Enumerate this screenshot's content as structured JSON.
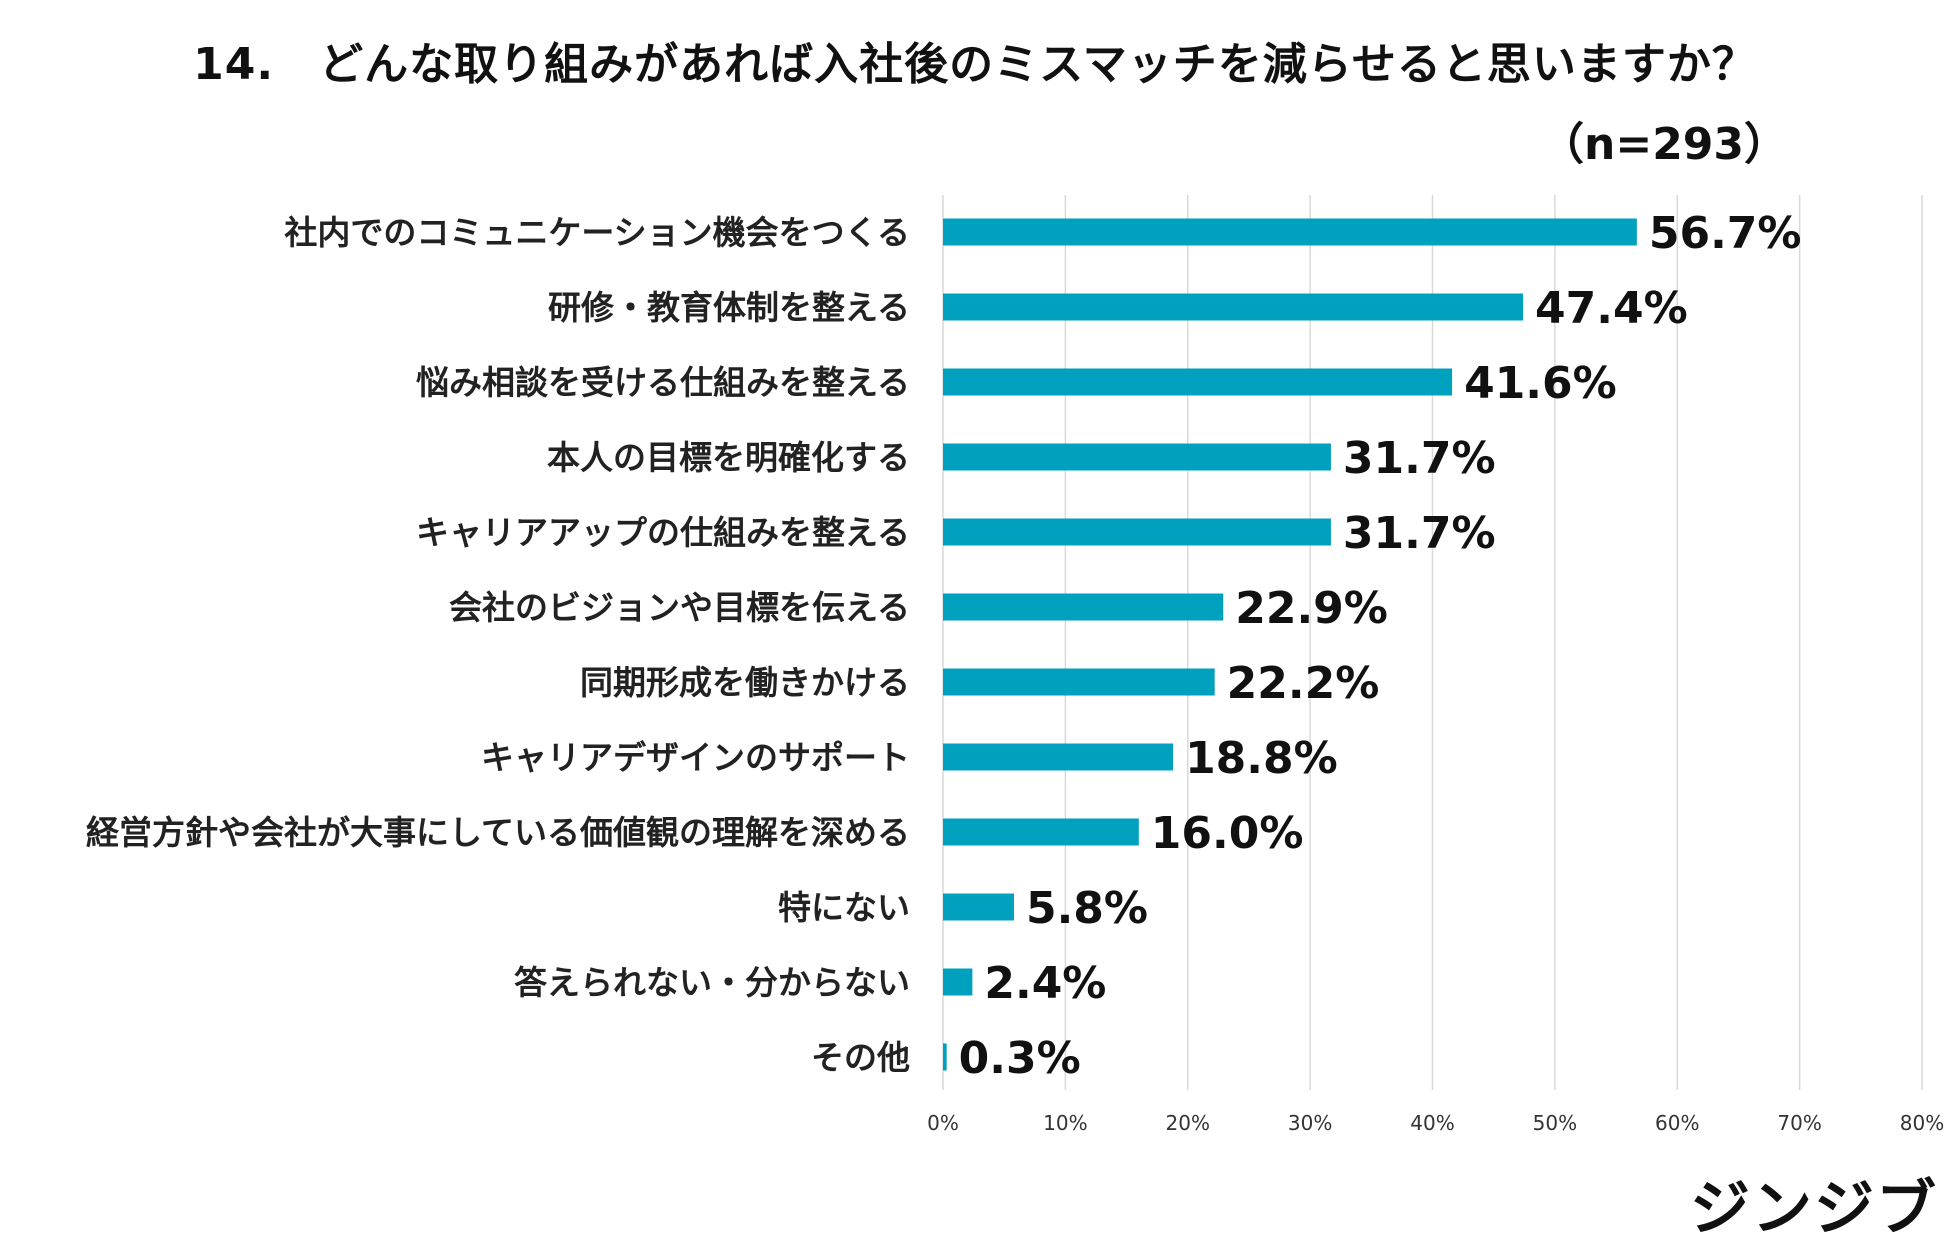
{
  "chart_data": {
    "type": "bar",
    "orientation": "horizontal",
    "title": "14.　どんな取り組みがあれば入社後のミスマッチを減らせると思いますか？",
    "subtitle": "（n=293）",
    "categories": [
      "社内でのコミュニケーション機会をつくる",
      "研修・教育体制を整える",
      "悩み相談を受ける仕組みを整える",
      "本人の目標を明確化する",
      "キャリアアップの仕組みを整える",
      "会社のビジョンや目標を伝える",
      "同期形成を働きかける",
      "キャリアデザインのサポート",
      "経営方針や会社が大事にしている価値観の理解を深める",
      "特にない",
      "答えられない・分からない",
      "その他"
    ],
    "values": [
      56.7,
      47.4,
      41.6,
      31.7,
      31.7,
      22.9,
      22.2,
      18.8,
      16.0,
      5.8,
      2.4,
      0.3
    ],
    "value_labels": [
      "56.7%",
      "47.4%",
      "41.6%",
      "31.7%",
      "31.7%",
      "22.9%",
      "22.2%",
      "18.8%",
      "16.0%",
      "5.8%",
      "2.4%",
      "0.3%"
    ],
    "xlim": [
      0,
      80
    ],
    "xticks": [
      "0%",
      "10%",
      "20%",
      "30%",
      "40%",
      "50%",
      "60%",
      "70%",
      "80%"
    ],
    "grid": true,
    "bar_color": "#00a0bf",
    "grid_color": "#d9d9d9"
  },
  "brand": "ジンジブ"
}
